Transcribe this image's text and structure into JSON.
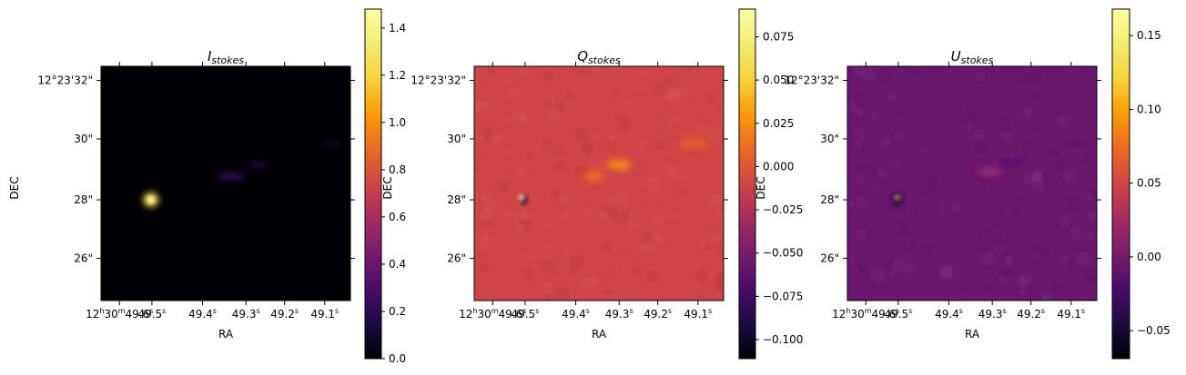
{
  "chart_data": [
    {
      "type": "heatmap",
      "title": {
        "main": "I",
        "sub": "stokes"
      },
      "xlabel": "RA",
      "ylabel": "DEC",
      "background": "#000004",
      "ra_ticks": [
        {
          "h": "12",
          "m": "30",
          "s": "49.6"
        },
        {
          "s": "49.5"
        },
        {
          "s": "49.4"
        },
        {
          "s": "49.3"
        },
        {
          "s": "49.2"
        },
        {
          "s": "49.1"
        }
      ],
      "dec_ticks": [
        {
          "text": "12°23'32\"",
          "pos": 32
        },
        {
          "text": "30\"",
          "pos": 30
        },
        {
          "text": "28\"",
          "pos": 28
        },
        {
          "text": "26\"",
          "pos": 26
        }
      ],
      "features": [
        {
          "x": 0.2,
          "y": 0.57,
          "rx": 0.03,
          "ry": 0.03,
          "color": "#f5db4a",
          "opacity": 1.0
        },
        {
          "x": 0.2,
          "y": 0.57,
          "rx": 0.015,
          "ry": 0.015,
          "color": "#fcffa4",
          "opacity": 1.0
        },
        {
          "x": 0.52,
          "y": 0.47,
          "rx": 0.06,
          "ry": 0.015,
          "color": "#400a67",
          "opacity": 0.9
        },
        {
          "x": 0.63,
          "y": 0.42,
          "rx": 0.04,
          "ry": 0.013,
          "color": "#3b0b60",
          "opacity": 0.8
        },
        {
          "x": 0.92,
          "y": 0.33,
          "rx": 0.05,
          "ry": 0.012,
          "color": "#23093f",
          "opacity": 0.7
        }
      ],
      "colorbar": {
        "min": 0.0,
        "max": 1.48,
        "ticks": [
          "0.0",
          "0.2",
          "0.4",
          "0.6",
          "0.8",
          "1.0",
          "1.2",
          "1.4"
        ],
        "tick_values": [
          0,
          0.2,
          0.4,
          0.6,
          0.8,
          1.0,
          1.2,
          1.4
        ],
        "colormap": "inferno"
      }
    },
    {
      "type": "heatmap",
      "title": {
        "main": "Q",
        "sub": "stokes"
      },
      "xlabel": "RA",
      "ylabel": "DEC",
      "background": "#cf4446",
      "ra_ticks": [
        {
          "h": "12",
          "m": "30",
          "s": "49.6"
        },
        {
          "s": "49.5"
        },
        {
          "s": "49.4"
        },
        {
          "s": "49.3"
        },
        {
          "s": "49.2"
        },
        {
          "s": "49.1"
        }
      ],
      "dec_ticks": [
        {
          "text": "12°23'32\"",
          "pos": 32
        },
        {
          "text": "30\"",
          "pos": 30
        },
        {
          "text": "28\"",
          "pos": 28
        },
        {
          "text": "26\"",
          "pos": 26
        }
      ],
      "features": [
        {
          "x": 0.48,
          "y": 0.47,
          "rx": 0.04,
          "ry": 0.02,
          "color": "#f3771a",
          "opacity": 0.9
        },
        {
          "x": 0.58,
          "y": 0.42,
          "rx": 0.05,
          "ry": 0.02,
          "color": "#fa9a0a",
          "opacity": 0.9
        },
        {
          "x": 0.88,
          "y": 0.33,
          "rx": 0.06,
          "ry": 0.02,
          "color": "#e96b21",
          "opacity": 0.85
        },
        {
          "x": 0.2,
          "y": 0.57,
          "rx": 0.012,
          "ry": 0.02,
          "color": "#1b0c41",
          "opacity": 1.0
        },
        {
          "x": 0.19,
          "y": 0.56,
          "rx": 0.01,
          "ry": 0.012,
          "color": "#fcffa4",
          "opacity": 1.0
        }
      ],
      "colorbar": {
        "min": -0.111,
        "max": 0.091,
        "ticks": [
          "−0.100",
          "−0.075",
          "−0.050",
          "−0.025",
          "0.000",
          "0.025",
          "0.050",
          "0.075"
        ],
        "tick_values": [
          -0.1,
          -0.075,
          -0.05,
          -0.025,
          0.0,
          0.025,
          0.05,
          0.075
        ],
        "colormap": "inferno"
      }
    },
    {
      "type": "heatmap",
      "title": {
        "main": "U",
        "sub": "stokes"
      },
      "xlabel": "RA",
      "ylabel": "DEC",
      "background": "#6a176e",
      "ra_ticks": [
        {
          "h": "12",
          "m": "30",
          "s": "49.6"
        },
        {
          "s": "49.5"
        },
        {
          "s": "49.4"
        },
        {
          "s": "49.3"
        },
        {
          "s": "49.2"
        },
        {
          "s": "49.1"
        }
      ],
      "dec_ticks": [
        {
          "text": "12°23'32\"",
          "pos": 32
        },
        {
          "text": "30\"",
          "pos": 30
        },
        {
          "text": "28\"",
          "pos": 28
        },
        {
          "text": "26\"",
          "pos": 26
        }
      ],
      "features": [
        {
          "x": 0.57,
          "y": 0.45,
          "rx": 0.05,
          "ry": 0.015,
          "color": "#b5367a",
          "opacity": 0.8
        },
        {
          "x": 0.65,
          "y": 0.41,
          "rx": 0.04,
          "ry": 0.012,
          "color": "#420a68",
          "opacity": 0.8
        },
        {
          "x": 0.92,
          "y": 0.33,
          "rx": 0.04,
          "ry": 0.01,
          "color": "#4d0d6c",
          "opacity": 0.7
        },
        {
          "x": 0.2,
          "y": 0.57,
          "rx": 0.025,
          "ry": 0.03,
          "color": "#2c0a4e",
          "opacity": 0.8
        },
        {
          "x": 0.2,
          "y": 0.56,
          "rx": 0.012,
          "ry": 0.008,
          "color": "#fcc02a",
          "opacity": 1.0
        }
      ],
      "colorbar": {
        "min": -0.069,
        "max": 0.168,
        "ticks": [
          "−0.05",
          "0.00",
          "0.05",
          "0.10",
          "0.15"
        ],
        "tick_values": [
          -0.05,
          0.0,
          0.05,
          0.1,
          0.15
        ],
        "colormap": "inferno"
      }
    }
  ]
}
